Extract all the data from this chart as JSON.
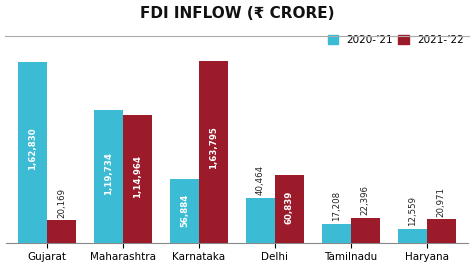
{
  "title": "FDI INFLOW (₹ CRORE)",
  "categories": [
    "Gujarat",
    "Maharashtra",
    "Karnataka",
    "Delhi",
    "Tamilnadu",
    "Haryana"
  ],
  "values_2021": [
    162830,
    119734,
    56884,
    40464,
    17208,
    12559
  ],
  "values_2022": [
    20169,
    114964,
    163795,
    60839,
    22396,
    20971
  ],
  "labels_2021": [
    "1,62,830",
    "1,19,734",
    "56,884",
    "40,464",
    "17,208",
    "12,559"
  ],
  "labels_2022": [
    "20,169",
    "1,14,964",
    "1,63,795",
    "60,839",
    "22,396",
    "20,971"
  ],
  "color_2021": "#3bbcd4",
  "color_2022": "#9b1b2a",
  "legend_labels": [
    "2020-’21",
    "2021-’22"
  ],
  "bg_color": "#ffffff",
  "bar_width": 0.38,
  "title_fontsize": 11,
  "label_fontsize": 6.2,
  "tick_fontsize": 7.5,
  "legend_fontsize": 7.5,
  "ylim": 195000,
  "inside_threshold": 50000
}
